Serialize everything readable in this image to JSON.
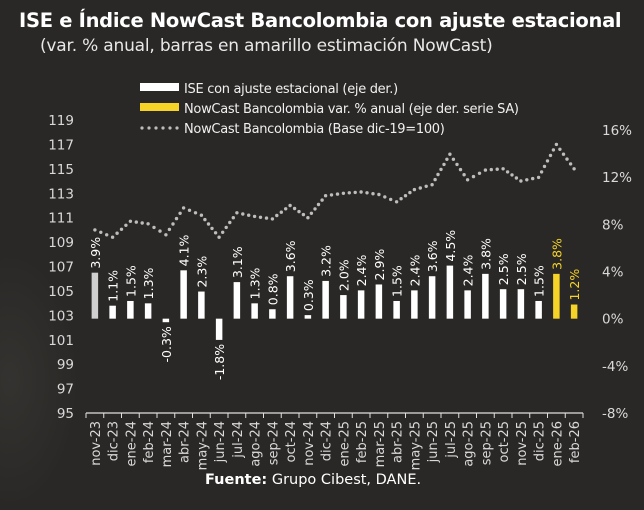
{
  "title": "ISE e Índice NowCast Bancolombia con ajuste estacional",
  "subtitle": "(var. % anual, barras en amarillo estimación NowCast)",
  "footer": {
    "label": "Fuente:",
    "text": " Grupo Cibest, DANE."
  },
  "colors": {
    "background": "#2a2826",
    "ise_bar": "#ffffff",
    "ise_bar_first": "#d0d0d0",
    "nowcast_bar": "#f5d327",
    "index_line": "#bdbdbd",
    "text": "#ffffff",
    "axis_text": "#d9d9d9"
  },
  "legend": [
    {
      "label": "ISE con ajuste estacional  (eje der.)",
      "type": "bar-white"
    },
    {
      "label": "NowCast Bancolombia var. % anual (eje der. serie SA)",
      "type": "bar-yellow"
    },
    {
      "label": "NowCast Bancolombia (Base dic-19=100)",
      "type": "dotted"
    }
  ],
  "chart_data": {
    "type": "bar",
    "title": "ISE e Índice NowCast Bancolombia con ajuste estacional",
    "subtitle": "(var. % anual, barras en amarillo estimación NowCast)",
    "categories": [
      "nov-23",
      "dic-23",
      "ene-24",
      "feb-24",
      "mar-24",
      "abr-24",
      "may-24",
      "jun-24",
      "jul-24",
      "ago-24",
      "sep-24",
      "oct-24",
      "nov-24",
      "dic-24",
      "ene-25",
      "feb-25",
      "mar-25",
      "abr-25",
      "may-25",
      "jun-25",
      "jul-25",
      "ago-25",
      "sep-25",
      "oct-25",
      "nov-25",
      "dic-25",
      "ene-26",
      "feb-26"
    ],
    "series": [
      {
        "name": "ISE con ajuste estacional  (eje der.)",
        "type": "bar",
        "axis": "right",
        "color": "#ffffff",
        "values": [
          3.9,
          1.1,
          1.5,
          1.3,
          -0.3,
          4.1,
          2.3,
          -1.8,
          3.1,
          1.3,
          0.8,
          3.6,
          0.3,
          3.2,
          2.0,
          2.4,
          2.9,
          1.5,
          2.4,
          3.6,
          4.5,
          2.4,
          3.8,
          2.5,
          2.5,
          1.5,
          null,
          null
        ],
        "labels": [
          "3.9%",
          "1.1%",
          "1.5%",
          "1.3%",
          "-0.3%",
          "4.1%",
          "2.3%",
          "-1.8%",
          "3.1%",
          "1.3%",
          "0.8%",
          "3.6%",
          "0.3%",
          "3.2%",
          "2.0%",
          "2.4%",
          "2.9%",
          "1.5%",
          "2.4%",
          "3.6%",
          "4.5%",
          "2.4%",
          "3.8%",
          "2.5%",
          "2.5%",
          "1.5%",
          "",
          ""
        ]
      },
      {
        "name": "NowCast Bancolombia var. % anual (eje der. serie SA)",
        "type": "bar",
        "axis": "right",
        "color": "#f5d327",
        "values": [
          null,
          null,
          null,
          null,
          null,
          null,
          null,
          null,
          null,
          null,
          null,
          null,
          null,
          null,
          null,
          null,
          null,
          null,
          null,
          null,
          null,
          null,
          null,
          null,
          null,
          null,
          3.8,
          1.2
        ],
        "labels": [
          "",
          "",
          "",
          "",
          "",
          "",
          "",
          "",
          "",
          "",
          "",
          "",
          "",
          "",
          "",
          "",
          "",
          "",
          "",
          "",
          "",
          "",
          "",
          "",
          "",
          "",
          "3.8%",
          "1.2%"
        ]
      },
      {
        "name": "NowCast Bancolombia (Base dic-19=100)",
        "type": "line",
        "style": "dotted",
        "axis": "left",
        "color": "#bdbdbd",
        "values": [
          110.0,
          109.4,
          110.7,
          110.5,
          109.6,
          111.8,
          111.2,
          109.4,
          111.4,
          111.1,
          110.9,
          112.0,
          111.0,
          112.8,
          113.0,
          113.1,
          112.9,
          112.3,
          113.3,
          113.7,
          116.2,
          114.1,
          114.9,
          115.0,
          114.0,
          114.3,
          117.0,
          115.0
        ]
      }
    ],
    "left_axis": {
      "ticks": [
        119,
        117,
        115,
        113,
        111,
        109,
        107,
        105,
        103,
        101,
        99,
        97,
        95
      ],
      "ylim": [
        95,
        119
      ]
    },
    "right_axis": {
      "ticks": [
        "16%",
        "12%",
        "8%",
        "4%",
        "0%",
        "-4%",
        "-8%"
      ],
      "ylim": [
        -8,
        16
      ]
    },
    "xlabel": "",
    "ylabel": "",
    "grid": false,
    "legend_position": "top"
  }
}
